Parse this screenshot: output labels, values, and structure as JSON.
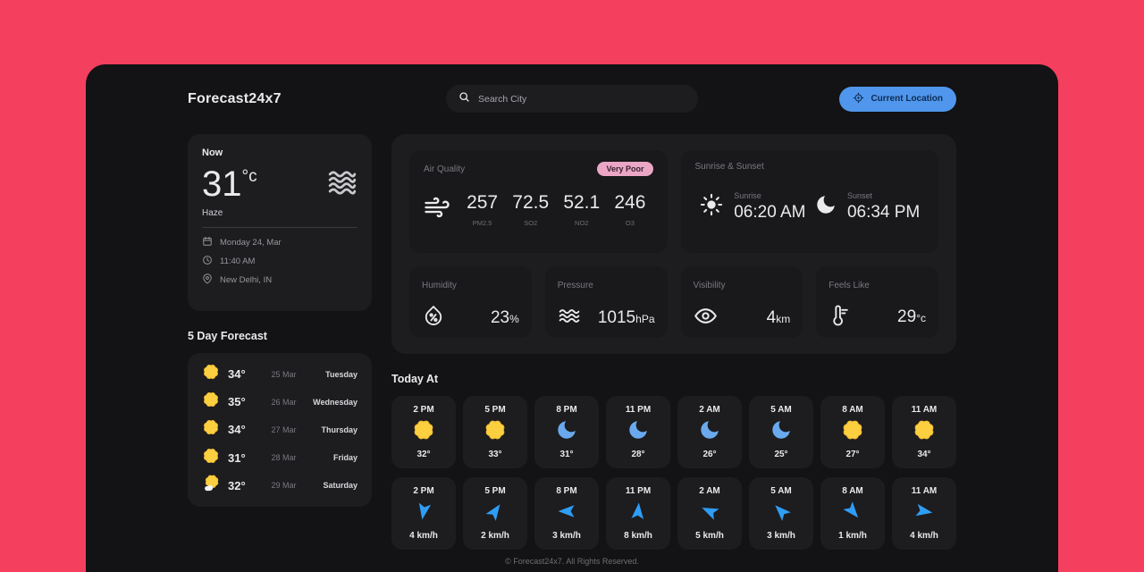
{
  "app": {
    "title": "Forecast24x7",
    "footer": "© Forecast24x7. All Rights Reserved."
  },
  "header": {
    "search_placeholder": "Search City",
    "location_button": "Current Location"
  },
  "colors": {
    "page_bg": "#f43f5e",
    "panel_bg": "#131214",
    "card_bg": "#1d1c1f",
    "inner_card_bg": "#19181b",
    "button_bg": "#4f96ec",
    "button_text": "#0e2c52",
    "badge_bg": "#eba6c5",
    "badge_text": "#3a2330",
    "sun_yellow": "#fbcf3f",
    "moon_blue": "#6aa9ee",
    "wind_arrow_blue": "#2f9df4",
    "text_primary": "#eae9ec",
    "text_secondary": "#7b7980"
  },
  "now": {
    "section_label": "Now",
    "temperature": "31",
    "unit": "°c",
    "condition": "Haze",
    "date": "Monday 24, Mar",
    "time": "11:40 AM",
    "location": "New Delhi, IN"
  },
  "forecast": {
    "title": "5 Day Forecast",
    "days": [
      {
        "icon": "sun",
        "temp": "34°",
        "date": "25 Mar",
        "day": "Tuesday"
      },
      {
        "icon": "sun",
        "temp": "35°",
        "date": "26 Mar",
        "day": "Wednesday"
      },
      {
        "icon": "sun",
        "temp": "34°",
        "date": "27 Mar",
        "day": "Thursday"
      },
      {
        "icon": "sun",
        "temp": "31°",
        "date": "28 Mar",
        "day": "Friday"
      },
      {
        "icon": "sun-cloud",
        "temp": "32°",
        "date": "29 Mar",
        "day": "Saturday"
      }
    ]
  },
  "highlights": {
    "air_quality": {
      "label": "Air Quality",
      "badge": "Very Poor",
      "metrics": [
        {
          "value": "257",
          "name": "PM2.5"
        },
        {
          "value": "72.5",
          "name": "SO2"
        },
        {
          "value": "52.1",
          "name": "NO2"
        },
        {
          "value": "246",
          "name": "O3"
        }
      ]
    },
    "sunrise_sunset": {
      "label": "Sunrise & Sunset",
      "sunrise_label": "Sunrise",
      "sunrise_time": "06:20 AM",
      "sunset_label": "Sunset",
      "sunset_time": "06:34 PM"
    },
    "humidity": {
      "label": "Humidity",
      "value": "23",
      "unit": "%"
    },
    "pressure": {
      "label": "Pressure",
      "value": "1015",
      "unit": "hPa"
    },
    "visibility": {
      "label": "Visibility",
      "value": "4",
      "unit": "km"
    },
    "feels_like": {
      "label": "Feels Like",
      "value": "29",
      "unit": "°c"
    }
  },
  "today_at": {
    "title": "Today At",
    "temperature_hours": [
      {
        "time": "2 PM",
        "icon": "sun",
        "value": "32°"
      },
      {
        "time": "5 PM",
        "icon": "sun",
        "value": "33°"
      },
      {
        "time": "8 PM",
        "icon": "moon",
        "value": "31°"
      },
      {
        "time": "11 PM",
        "icon": "moon",
        "value": "28°"
      },
      {
        "time": "2 AM",
        "icon": "moon",
        "value": "26°"
      },
      {
        "time": "5 AM",
        "icon": "moon",
        "value": "25°"
      },
      {
        "time": "8 AM",
        "icon": "sun",
        "value": "27°"
      },
      {
        "time": "11 AM",
        "icon": "sun",
        "value": "34°"
      }
    ],
    "wind_hours": [
      {
        "time": "2 PM",
        "direction_deg": 190,
        "value": "4 km/h"
      },
      {
        "time": "5 PM",
        "direction_deg": 35,
        "value": "2 km/h"
      },
      {
        "time": "8 PM",
        "direction_deg": 270,
        "value": "3 km/h"
      },
      {
        "time": "11 PM",
        "direction_deg": 5,
        "value": "8 km/h"
      },
      {
        "time": "2 AM",
        "direction_deg": 295,
        "value": "5 km/h"
      },
      {
        "time": "5 AM",
        "direction_deg": 315,
        "value": "3 km/h"
      },
      {
        "time": "8 AM",
        "direction_deg": 140,
        "value": "1 km/h"
      },
      {
        "time": "11 AM",
        "direction_deg": 100,
        "value": "4 km/h"
      }
    ]
  }
}
